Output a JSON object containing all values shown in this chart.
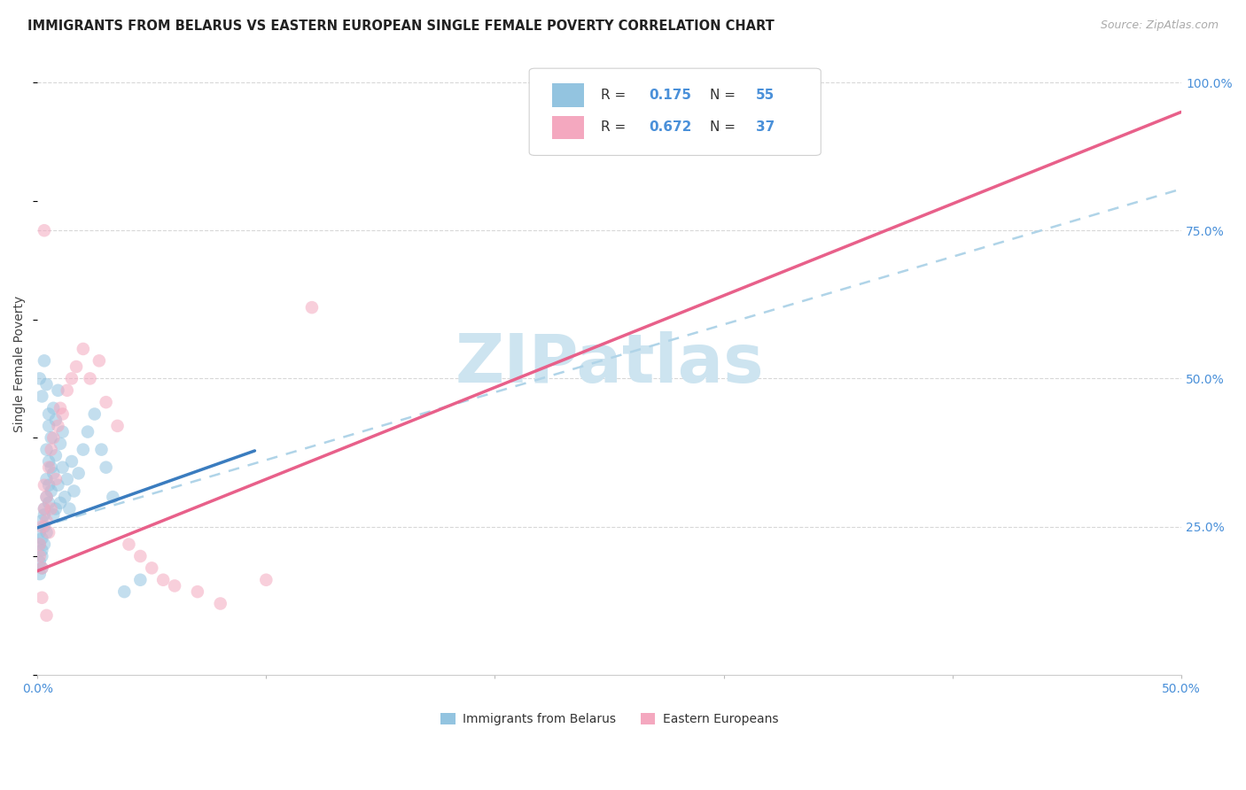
{
  "title": "IMMIGRANTS FROM BELARUS VS EASTERN EUROPEAN SINGLE FEMALE POVERTY CORRELATION CHART",
  "source": "Source: ZipAtlas.com",
  "ylabel": "Single Female Poverty",
  "xlim": [
    0.0,
    0.5
  ],
  "ylim": [
    0.0,
    1.05
  ],
  "xticks": [
    0.0,
    0.1,
    0.2,
    0.3,
    0.4,
    0.5
  ],
  "xticklabels": [
    "0.0%",
    "",
    "",
    "",
    "",
    "50.0%"
  ],
  "yticks_right": [
    0.0,
    0.25,
    0.5,
    0.75,
    1.0
  ],
  "yticklabels_right": [
    "",
    "25.0%",
    "50.0%",
    "75.0%",
    "100.0%"
  ],
  "watermark": "ZIPatlas",
  "legend_r1_val": "0.175",
  "legend_n1_val": "55",
  "legend_r2_val": "0.672",
  "legend_n2_val": "37",
  "color_blue": "#93c4e0",
  "color_pink": "#f4a8bf",
  "color_blue_line": "#3a7cbf",
  "color_pink_line": "#e8608a",
  "color_dashed": "#b0d4e8",
  "blue_scatter_x": [
    0.001,
    0.001,
    0.001,
    0.001,
    0.002,
    0.002,
    0.002,
    0.002,
    0.002,
    0.003,
    0.003,
    0.003,
    0.003,
    0.004,
    0.004,
    0.004,
    0.004,
    0.005,
    0.005,
    0.005,
    0.005,
    0.006,
    0.006,
    0.006,
    0.007,
    0.007,
    0.007,
    0.008,
    0.008,
    0.008,
    0.009,
    0.009,
    0.01,
    0.01,
    0.011,
    0.011,
    0.012,
    0.013,
    0.014,
    0.015,
    0.016,
    0.018,
    0.02,
    0.022,
    0.025,
    0.028,
    0.03,
    0.033,
    0.038,
    0.045,
    0.001,
    0.002,
    0.003,
    0.004,
    0.005
  ],
  "blue_scatter_y": [
    0.22,
    0.24,
    0.19,
    0.17,
    0.21,
    0.23,
    0.26,
    0.2,
    0.18,
    0.25,
    0.28,
    0.22,
    0.27,
    0.3,
    0.24,
    0.33,
    0.38,
    0.29,
    0.36,
    0.32,
    0.42,
    0.35,
    0.31,
    0.4,
    0.34,
    0.27,
    0.45,
    0.37,
    0.28,
    0.43,
    0.32,
    0.48,
    0.29,
    0.39,
    0.35,
    0.41,
    0.3,
    0.33,
    0.28,
    0.36,
    0.31,
    0.34,
    0.38,
    0.41,
    0.44,
    0.38,
    0.35,
    0.3,
    0.14,
    0.16,
    0.5,
    0.47,
    0.53,
    0.49,
    0.44
  ],
  "pink_scatter_x": [
    0.001,
    0.001,
    0.002,
    0.002,
    0.003,
    0.003,
    0.003,
    0.004,
    0.004,
    0.005,
    0.005,
    0.006,
    0.006,
    0.007,
    0.008,
    0.009,
    0.01,
    0.011,
    0.013,
    0.015,
    0.017,
    0.02,
    0.023,
    0.027,
    0.03,
    0.035,
    0.04,
    0.045,
    0.05,
    0.055,
    0.06,
    0.07,
    0.08,
    0.1,
    0.12,
    0.002,
    0.004
  ],
  "pink_scatter_y": [
    0.22,
    0.2,
    0.25,
    0.18,
    0.28,
    0.32,
    0.75,
    0.26,
    0.3,
    0.24,
    0.35,
    0.28,
    0.38,
    0.4,
    0.33,
    0.42,
    0.45,
    0.44,
    0.48,
    0.5,
    0.52,
    0.55,
    0.5,
    0.53,
    0.46,
    0.42,
    0.22,
    0.2,
    0.18,
    0.16,
    0.15,
    0.14,
    0.12,
    0.16,
    0.62,
    0.13,
    0.1
  ],
  "blue_line_x": [
    0.0,
    0.095
  ],
  "blue_line_y": [
    0.248,
    0.378
  ],
  "pink_line_x": [
    0.0,
    0.5
  ],
  "pink_line_y": [
    0.175,
    0.95
  ],
  "dashed_line_x": [
    0.0,
    0.5
  ],
  "dashed_line_y": [
    0.248,
    0.82
  ],
  "background_color": "#ffffff",
  "grid_color": "#d8d8d8",
  "title_fontsize": 10.5,
  "source_fontsize": 9,
  "ylabel_fontsize": 10,
  "tick_fontsize": 10,
  "watermark_color": "#cde4f0",
  "watermark_fontsize": 55,
  "legend_fontsize": 11
}
